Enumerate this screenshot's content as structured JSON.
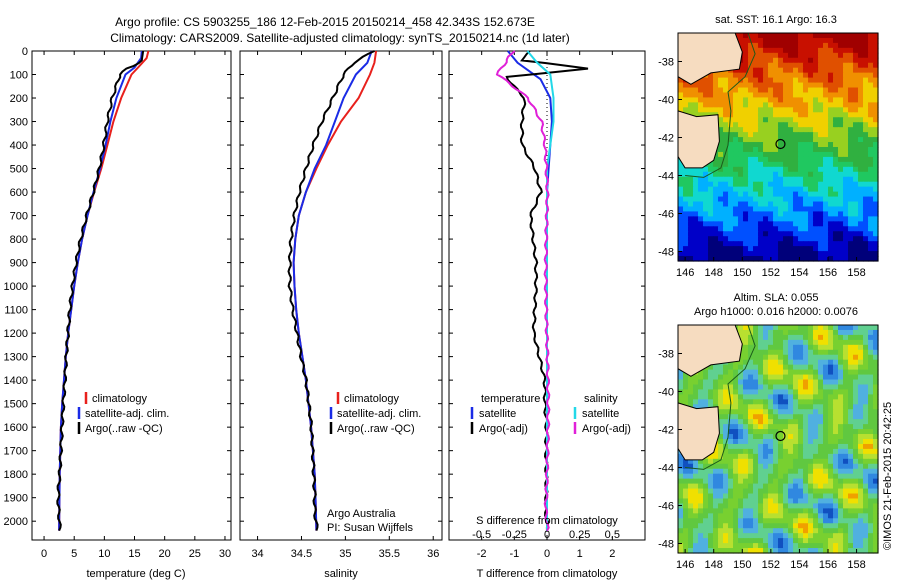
{
  "header": {
    "line1": "Argo profile: CS 5903255_186 12-Feb-2015 20150214_458 42.343S 152.673E",
    "line2": "Climatology: CARS2009. Satellite-adjusted climatology: synTS_20150214.nc (1d later)"
  },
  "colors": {
    "climatology": "#e8201c",
    "satellite": "#1a2be6",
    "argo": "#000000",
    "sat_salinity": "#22d8e8",
    "argo_salinity": "#e020d8",
    "land": "#f6dcc0",
    "coast": "#1a5a1a"
  },
  "chart_data": [
    {
      "type": "line",
      "name": "temperature-profile",
      "xlabel": "temperature (deg C)",
      "ylabel": "",
      "xlim": [
        -2,
        31
      ],
      "ylim": [
        2080,
        0
      ],
      "xticks": [
        "0",
        "5",
        "10",
        "15",
        "20",
        "25",
        "30"
      ],
      "yticks": [
        "0",
        "100",
        "200",
        "300",
        "400",
        "500",
        "600",
        "700",
        "800",
        "900",
        "1000",
        "1100",
        "1200",
        "1300",
        "1400",
        "1500",
        "1600",
        "1700",
        "1800",
        "1900",
        "2000"
      ],
      "series": [
        {
          "name": "climatology",
          "color": "#e8201c",
          "x": [
            17.3,
            17.0,
            15.6,
            14.5,
            12.8,
            11.5,
            10.5,
            9.5,
            8.3,
            7.2,
            6.3,
            5.6,
            5.0,
            4.5,
            4.0,
            3.6,
            3.3,
            3.0,
            2.8,
            2.7,
            2.6,
            2.5
          ],
          "y": [
            0,
            30,
            70,
            100,
            200,
            300,
            400,
            500,
            600,
            700,
            800,
            900,
            1000,
            1100,
            1200,
            1300,
            1400,
            1500,
            1600,
            1700,
            1800,
            2040
          ]
        },
        {
          "name": "satellite-adj. clim.",
          "color": "#1a2be6",
          "x": [
            16.2,
            16.1,
            15.0,
            13.5,
            12.0,
            11.0,
            10.2,
            9.3,
            8.2,
            7.2,
            6.3,
            5.6,
            5.0,
            4.5,
            4.0,
            3.6,
            3.3,
            3.0,
            2.8,
            2.7,
            2.6,
            2.5
          ],
          "y": [
            0,
            30,
            70,
            100,
            200,
            300,
            400,
            500,
            600,
            700,
            800,
            900,
            1000,
            1100,
            1200,
            1300,
            1400,
            1500,
            1600,
            1700,
            1800,
            2040
          ]
        },
        {
          "name": "Argo(..raw -QC)",
          "color": "#000000",
          "x": [
            16.4,
            16.2,
            13.8,
            12.6,
            11.2,
            10.3,
            9.7,
            9.0,
            8.1,
            7.1,
            6.2,
            5.5,
            4.9,
            4.4,
            4.0,
            3.6,
            3.3,
            3.0,
            2.8,
            2.7,
            2.6,
            2.5
          ],
          "y": [
            0,
            40,
            75,
            100,
            200,
            300,
            400,
            500,
            600,
            700,
            800,
            900,
            1000,
            1100,
            1200,
            1300,
            1400,
            1500,
            1600,
            1700,
            1800,
            2040
          ]
        }
      ],
      "legend": [
        "climatology",
        "satellite-adj. clim.",
        "Argo(..raw -QC)"
      ]
    },
    {
      "type": "line",
      "name": "salinity-profile",
      "xlabel": "salinity",
      "xlim": [
        33.8,
        36.1
      ],
      "ylim": [
        2080,
        0
      ],
      "xticks": [
        "34",
        "34.5",
        "35",
        "35.5",
        "36"
      ],
      "series": [
        {
          "name": "climatology",
          "color": "#e8201c",
          "x": [
            35.35,
            35.33,
            35.28,
            35.15,
            34.95,
            34.8,
            34.67,
            34.55,
            34.47,
            34.43,
            34.41,
            34.42,
            34.44,
            34.47,
            34.51,
            34.55,
            34.58,
            34.61,
            34.63,
            34.65,
            34.66,
            34.67
          ],
          "y": [
            0,
            50,
            100,
            200,
            300,
            400,
            500,
            600,
            700,
            800,
            900,
            1000,
            1100,
            1200,
            1300,
            1400,
            1500,
            1600,
            1700,
            1800,
            1900,
            2040
          ]
        },
        {
          "name": "satellite-adj. clim.",
          "color": "#1a2be6",
          "x": [
            35.3,
            35.25,
            35.12,
            34.98,
            34.88,
            34.78,
            34.65,
            34.55,
            34.47,
            34.43,
            34.41,
            34.42,
            34.44,
            34.47,
            34.51,
            34.55,
            34.58,
            34.61,
            34.63,
            34.65,
            34.66,
            34.67
          ],
          "y": [
            0,
            50,
            100,
            200,
            300,
            400,
            500,
            600,
            700,
            800,
            900,
            1000,
            1100,
            1200,
            1300,
            1400,
            1500,
            1600,
            1700,
            1800,
            1900,
            2040
          ]
        },
        {
          "name": "Argo(..raw -QC)",
          "color": "#000000",
          "x": [
            35.33,
            35.1,
            34.98,
            34.85,
            34.72,
            34.62,
            34.54,
            34.47,
            34.42,
            34.39,
            34.38,
            34.38,
            34.41,
            34.45,
            34.49,
            34.54,
            34.57,
            34.6,
            34.62,
            34.64,
            34.66,
            34.67
          ],
          "y": [
            0,
            50,
            100,
            200,
            300,
            400,
            500,
            600,
            700,
            800,
            900,
            1000,
            1100,
            1200,
            1300,
            1400,
            1500,
            1600,
            1700,
            1800,
            1900,
            2040
          ]
        }
      ],
      "legend": [
        "climatology",
        "satellite-adj. clim.",
        "Argo(..raw -QC)"
      ],
      "annotation": {
        "line1": "Argo Australia",
        "line2": "PI: Susan Wijffels"
      }
    },
    {
      "type": "line",
      "name": "difference-profile",
      "xlabel": "T difference from climatology",
      "xlabel_top": "S difference from climatology",
      "xlim": [
        -3.0,
        3.0
      ],
      "ylim": [
        2080,
        0
      ],
      "xticks": [
        "-2",
        "-1",
        "0",
        "1",
        "2"
      ],
      "sticks": [
        "-0.5",
        "-0.25",
        "0",
        "0.25",
        "0.5"
      ],
      "series": [
        {
          "name": "T satellite",
          "color": "#1a2be6",
          "x": [
            -1.2,
            -0.9,
            -0.6,
            -0.2,
            0.1,
            0.15,
            0.1,
            0.05,
            0.0,
            0.0,
            0.0,
            0.0,
            0.0,
            0.0,
            0.0,
            0.0,
            0.0,
            0.0,
            0.0,
            0.0,
            0.0
          ],
          "y": [
            0,
            50,
            80,
            120,
            200,
            300,
            400,
            500,
            600,
            700,
            800,
            900,
            1000,
            1200,
            1400,
            1500,
            1600,
            1700,
            1800,
            1900,
            2040
          ]
        },
        {
          "name": "T Argo(-adj)",
          "color": "#000000",
          "x": [
            -0.5,
            -0.8,
            1.3,
            -1.2,
            -0.7,
            -0.8,
            -0.8,
            -0.4,
            -0.2,
            -0.5,
            -0.4,
            -0.3,
            -0.3,
            -0.4,
            -0.1,
            -0.1,
            -0.05,
            -0.05,
            -0.02,
            0.0,
            0.0
          ],
          "y": [
            0,
            40,
            75,
            110,
            200,
            300,
            400,
            500,
            600,
            700,
            800,
            900,
            1000,
            1200,
            1400,
            1500,
            1600,
            1700,
            1800,
            1900,
            2040
          ]
        },
        {
          "name": "S satellite",
          "color": "#22d8e8",
          "x": [
            -0.6,
            -0.3,
            0.1,
            0.2,
            0.2,
            0.1,
            0.0,
            0.0,
            0.0,
            0.0,
            0.0,
            0.0,
            0.0,
            0.0,
            0.0,
            0.0,
            0.0,
            0.0,
            0.0,
            0.0,
            0.0
          ],
          "y": [
            0,
            50,
            100,
            200,
            300,
            400,
            500,
            600,
            700,
            800,
            900,
            1000,
            1100,
            1200,
            1400,
            1500,
            1600,
            1700,
            1800,
            1900,
            2040
          ]
        },
        {
          "name": "S Argo(-adj)",
          "color": "#e020d8",
          "x": [
            -1.0,
            -1.3,
            -1.5,
            -0.6,
            -0.2,
            -0.1,
            -0.05,
            0.0,
            0.0,
            0.0,
            0.0,
            0.0,
            0.0,
            0.0,
            0.0,
            0.0,
            0.0,
            0.0,
            0.0,
            0.0,
            0.0
          ],
          "y": [
            0,
            60,
            100,
            200,
            300,
            400,
            500,
            600,
            700,
            800,
            900,
            1000,
            1100,
            1200,
            1400,
            1500,
            1600,
            1700,
            1800,
            1900,
            2040
          ]
        }
      ],
      "legend_t": {
        "title": "temperature",
        "items": [
          "satellite",
          "Argo(-adj)"
        ]
      },
      "legend_s": {
        "title": "salinity",
        "items": [
          "satellite",
          "Argo(-adj)"
        ]
      }
    },
    {
      "type": "heatmap",
      "name": "sst-map",
      "title": "sat. SST: 16.1 Argo: 16.3",
      "xticks": [
        "146",
        "148",
        "150",
        "152",
        "154",
        "156",
        "158"
      ],
      "yticks": [
        "-38",
        "-40",
        "-42",
        "-44",
        "-46",
        "-48"
      ],
      "lon_range": [
        145.5,
        159.5
      ],
      "lat_range": [
        -48.5,
        -36.5
      ],
      "float_position": {
        "lon": 152.673,
        "lat": -42.343
      }
    },
    {
      "type": "heatmap",
      "name": "sla-map",
      "title_line1": "Altim. SLA: 0.055",
      "title_line2": "Argo h1000: 0.016 h2000: 0.0076",
      "xticks": [
        "146",
        "148",
        "150",
        "152",
        "154",
        "156",
        "158"
      ],
      "yticks": [
        "-38",
        "-40",
        "-42",
        "-44",
        "-46",
        "-48"
      ],
      "lon_range": [
        145.5,
        159.5
      ],
      "lat_range": [
        -48.5,
        -36.5
      ],
      "float_position": {
        "lon": 152.673,
        "lat": -42.343
      }
    }
  ],
  "watermark": "©IMOS 21-Feb-2015 20:42:25"
}
